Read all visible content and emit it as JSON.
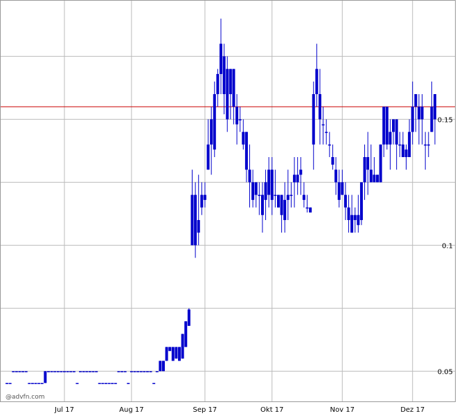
{
  "chart_data": {
    "type": "candlestick",
    "color": "#0000cc",
    "grid": true,
    "watermark": "@advfn.com",
    "reference_line": {
      "value": 0.155,
      "color": "#cc0000"
    },
    "ylim": [
      0.038,
      0.196
    ],
    "yticks": [
      0.05,
      0.1,
      0.15
    ],
    "minor_yticks": [
      0.075,
      0.125,
      0.175
    ],
    "categories": [
      null,
      null,
      null,
      null,
      null,
      null,
      null,
      null,
      null,
      null,
      null,
      null,
      null,
      null,
      null,
      null,
      null,
      null,
      "Jul 17",
      null,
      null,
      null,
      null,
      null,
      null,
      null,
      null,
      null,
      null,
      null,
      null,
      null,
      null,
      null,
      null,
      null,
      null,
      null,
      null,
      "Aug 17",
      null,
      null,
      null,
      null,
      null,
      null,
      null,
      null,
      null,
      null,
      null,
      null,
      null,
      null,
      null,
      null,
      null,
      null,
      null,
      null,
      null,
      null,
      "Sep 17",
      null,
      null,
      null,
      null,
      null,
      null,
      null,
      null,
      null,
      null,
      null,
      null,
      null,
      null,
      null,
      null,
      null,
      null,
      null,
      null,
      "Okt 17",
      null,
      null,
      null,
      null,
      null,
      null,
      null,
      null,
      null,
      null,
      null,
      null,
      null,
      null,
      null,
      null,
      null,
      null,
      null,
      null,
      null,
      "Nov 17",
      null,
      null,
      null,
      null,
      null,
      null,
      null,
      null,
      null,
      null,
      null,
      null,
      null,
      null,
      null,
      null,
      null,
      null,
      null,
      null,
      null,
      "Dez 17",
      null,
      null,
      null,
      null,
      null,
      null,
      null
    ],
    "open": [
      0.0453,
      0.0453,
      0.05,
      0.05,
      0.05,
      0.05,
      0.05,
      0.0453,
      0.0453,
      0.0453,
      0.0453,
      0.0453,
      0.0453,
      0.05,
      0.05,
      0.05,
      0.05,
      0.05,
      0.05,
      0.05,
      0.05,
      0.05,
      0.0453,
      0.05,
      0.05,
      0.05,
      0.05,
      0.05,
      0.05,
      0.0453,
      0.0453,
      0.0453,
      0.0453,
      0.0453,
      0.0453,
      0.05,
      0.05,
      0.05,
      0.0453,
      0.05,
      0.05,
      0.05,
      0.05,
      0.05,
      0.05,
      0.05,
      0.0453,
      0.05,
      0.05,
      0.0541,
      0.0541,
      0.058,
      0.0596,
      0.055,
      0.0596,
      0.055,
      0.0596,
      0.068,
      0.1,
      0.12,
      0.105,
      0.115,
      0.12,
      0.13,
      0.14,
      0.138,
      0.16,
      0.168,
      0.175,
      0.17,
      0.16,
      0.17,
      0.155,
      0.15,
      0.145,
      0.145,
      0.13,
      0.125,
      0.12,
      0.12,
      0.12,
      0.125,
      0.12,
      0.13,
      0.12,
      0.115,
      0.12,
      0.118,
      0.12,
      0.12,
      0.125,
      0.128,
      0.13,
      0.12,
      0.115,
      0.115,
      0.14,
      0.16,
      0.16,
      0.148,
      0.145,
      0.14,
      0.135,
      0.13,
      0.125,
      0.125,
      0.12,
      0.115,
      0.112,
      0.11,
      0.112,
      0.11,
      0.125,
      0.135,
      0.13,
      0.125,
      0.128,
      0.125,
      0.14,
      0.155,
      0.14,
      0.145,
      0.15,
      0.14,
      0.14,
      0.138,
      0.135,
      0.145,
      0.155,
      0.155,
      0.15,
      0.14,
      0.14,
      0.145,
      0.15
    ],
    "high": [
      0.0453,
      0.0453,
      0.05,
      0.05,
      0.05,
      0.05,
      0.05,
      0.0453,
      0.0453,
      0.0453,
      0.0453,
      0.0453,
      0.05,
      0.05,
      0.05,
      0.05,
      0.05,
      0.05,
      0.05,
      0.05,
      0.05,
      0.05,
      0.0453,
      0.05,
      0.05,
      0.05,
      0.05,
      0.05,
      0.05,
      0.0453,
      0.0453,
      0.0453,
      0.0453,
      0.0453,
      0.0453,
      0.05,
      0.05,
      0.05,
      0.0453,
      0.05,
      0.05,
      0.05,
      0.05,
      0.05,
      0.05,
      0.05,
      0.0453,
      0.05,
      0.0541,
      0.0541,
      0.0596,
      0.0596,
      0.0596,
      0.0596,
      0.0596,
      0.0648,
      0.0698,
      0.075,
      0.13,
      0.125,
      0.128,
      0.125,
      0.125,
      0.15,
      0.155,
      0.165,
      0.17,
      0.19,
      0.18,
      0.175,
      0.17,
      0.17,
      0.16,
      0.155,
      0.15,
      0.145,
      0.14,
      0.13,
      0.125,
      0.125,
      0.125,
      0.13,
      0.135,
      0.135,
      0.13,
      0.12,
      0.12,
      0.125,
      0.13,
      0.125,
      0.135,
      0.135,
      0.135,
      0.125,
      0.12,
      0.115,
      0.165,
      0.18,
      0.17,
      0.155,
      0.15,
      0.145,
      0.14,
      0.135,
      0.13,
      0.13,
      0.125,
      0.12,
      0.12,
      0.115,
      0.12,
      0.125,
      0.14,
      0.145,
      0.14,
      0.135,
      0.128,
      0.14,
      0.155,
      0.155,
      0.15,
      0.15,
      0.15,
      0.145,
      0.145,
      0.14,
      0.15,
      0.165,
      0.16,
      0.16,
      0.16,
      0.145,
      0.145,
      0.165,
      0.16
    ],
    "low": [
      0.0453,
      0.0453,
      0.05,
      0.05,
      0.05,
      0.05,
      0.05,
      0.0453,
      0.0453,
      0.0453,
      0.0453,
      0.0453,
      0.0453,
      0.05,
      0.05,
      0.05,
      0.05,
      0.05,
      0.05,
      0.05,
      0.05,
      0.05,
      0.0453,
      0.05,
      0.05,
      0.05,
      0.05,
      0.05,
      0.05,
      0.0453,
      0.0453,
      0.0453,
      0.0453,
      0.0453,
      0.0453,
      0.05,
      0.05,
      0.05,
      0.0453,
      0.05,
      0.05,
      0.05,
      0.05,
      0.05,
      0.05,
      0.05,
      0.0453,
      0.05,
      0.05,
      0.05,
      0.0541,
      0.058,
      0.0541,
      0.055,
      0.0541,
      0.055,
      0.0596,
      0.068,
      0.1,
      0.095,
      0.1,
      0.112,
      0.115,
      0.13,
      0.128,
      0.135,
      0.155,
      0.16,
      0.152,
      0.145,
      0.15,
      0.148,
      0.14,
      0.145,
      0.138,
      0.125,
      0.115,
      0.115,
      0.115,
      0.112,
      0.105,
      0.11,
      0.115,
      0.112,
      0.115,
      0.115,
      0.105,
      0.105,
      0.11,
      0.115,
      0.115,
      0.12,
      0.12,
      0.115,
      0.113,
      0.113,
      0.13,
      0.155,
      0.14,
      0.14,
      0.14,
      0.135,
      0.13,
      0.12,
      0.115,
      0.12,
      0.11,
      0.105,
      0.105,
      0.105,
      0.105,
      0.108,
      0.118,
      0.12,
      0.125,
      0.125,
      0.125,
      0.125,
      0.135,
      0.138,
      0.13,
      0.14,
      0.13,
      0.135,
      0.135,
      0.13,
      0.135,
      0.14,
      0.145,
      0.14,
      0.14,
      0.13,
      0.135,
      0.145,
      0.14
    ],
    "close": [
      0.0453,
      0.0453,
      0.05,
      0.05,
      0.05,
      0.05,
      0.05,
      0.0453,
      0.0453,
      0.0453,
      0.0453,
      0.0453,
      0.05,
      0.05,
      0.05,
      0.05,
      0.05,
      0.05,
      0.05,
      0.05,
      0.05,
      0.05,
      0.0453,
      0.05,
      0.05,
      0.05,
      0.05,
      0.05,
      0.05,
      0.0453,
      0.0453,
      0.0453,
      0.0453,
      0.0453,
      0.0453,
      0.05,
      0.05,
      0.05,
      0.0453,
      0.05,
      0.05,
      0.05,
      0.05,
      0.05,
      0.05,
      0.05,
      0.0453,
      0.05,
      0.0541,
      0.05,
      0.0596,
      0.0596,
      0.0541,
      0.0596,
      0.0541,
      0.0648,
      0.0698,
      0.0745,
      0.12,
      0.1,
      0.11,
      0.12,
      0.118,
      0.14,
      0.15,
      0.16,
      0.168,
      0.18,
      0.16,
      0.15,
      0.17,
      0.155,
      0.148,
      0.15,
      0.14,
      0.13,
      0.125,
      0.118,
      0.125,
      0.12,
      0.112,
      0.118,
      0.13,
      0.118,
      0.12,
      0.12,
      0.112,
      0.11,
      0.118,
      0.12,
      0.128,
      0.125,
      0.128,
      0.118,
      0.115,
      0.113,
      0.16,
      0.17,
      0.15,
      0.148,
      0.145,
      0.14,
      0.132,
      0.125,
      0.118,
      0.12,
      0.115,
      0.11,
      0.105,
      0.112,
      0.108,
      0.125,
      0.135,
      0.13,
      0.125,
      0.128,
      0.125,
      0.14,
      0.155,
      0.14,
      0.145,
      0.15,
      0.14,
      0.14,
      0.135,
      0.135,
      0.145,
      0.155,
      0.16,
      0.15,
      0.155,
      0.14,
      0.14,
      0.155,
      0.16
    ]
  }
}
